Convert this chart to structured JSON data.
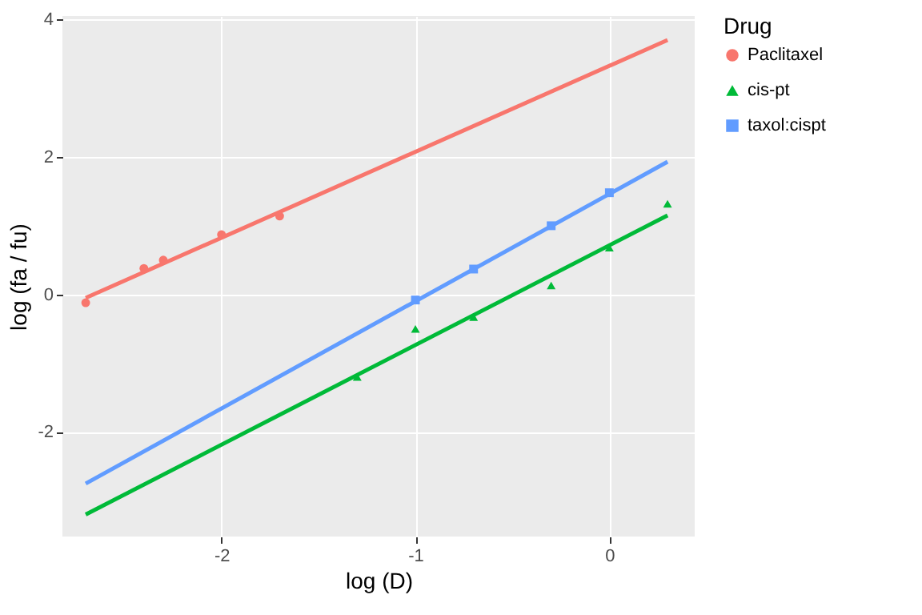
{
  "chart_data": {
    "type": "scatter",
    "xlabel": "log (D)",
    "ylabel": "log (fa / fu)",
    "legend_title": "Drug",
    "legend": "right",
    "grid": true,
    "xlim": [
      -2.82,
      0.44
    ],
    "xticks": [
      -2,
      -1,
      0
    ],
    "ylim": [
      -3.52,
      4.05
    ],
    "yticks": [
      -2,
      0,
      2,
      4
    ],
    "series": [
      {
        "name": "Paclitaxel",
        "color": "#f8766d",
        "marker": "circle",
        "x": [
          -2.7,
          -2.4,
          -2.3,
          -2.0,
          -1.7
        ],
        "values": [
          -0.12,
          0.38,
          0.5,
          0.87,
          1.14
        ]
      },
      {
        "name": "cis-pt",
        "color": "#00ba38",
        "marker": "triangle",
        "x": [
          -1.3,
          -1.0,
          -0.7,
          -0.3,
          0.0,
          0.3
        ],
        "values": [
          -1.2,
          -0.5,
          -0.33,
          0.13,
          0.68,
          1.32
        ]
      },
      {
        "name": "taxol:cispt",
        "color": "#619cff",
        "marker": "square",
        "x": [
          -1.0,
          -0.7,
          -0.3,
          0.0
        ],
        "values": [
          -0.08,
          0.37,
          1.0,
          1.48
        ]
      },
      {
        "color": "#f8766d",
        "type": "line",
        "x": [
          -2.7,
          0.3
        ],
        "values": [
          -0.05,
          3.7
        ]
      },
      {
        "color": "#00ba38",
        "type": "line",
        "x": [
          -2.7,
          0.3
        ],
        "values": [
          -3.2,
          1.15
        ]
      },
      {
        "color": "#619cff",
        "type": "line",
        "x": [
          -2.7,
          0.3
        ],
        "values": [
          -2.75,
          1.93
        ]
      }
    ]
  }
}
